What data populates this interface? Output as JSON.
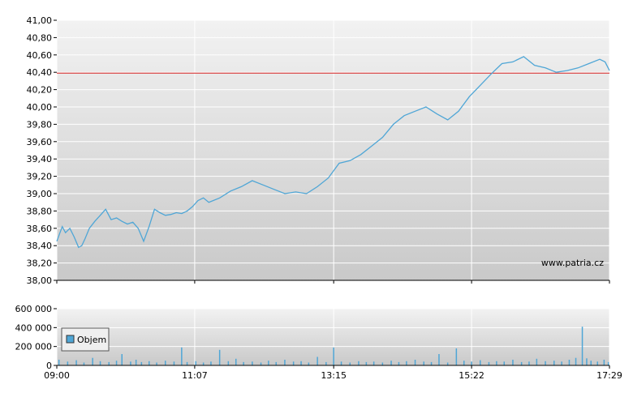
{
  "chart_data": [
    {
      "type": "line",
      "title": "",
      "xlabel": "",
      "ylabel": "",
      "ylim": [
        38.0,
        41.0
      ],
      "y_ticks": [
        "38,00",
        "38,20",
        "38,40",
        "38,60",
        "38,80",
        "39,00",
        "39,20",
        "39,40",
        "39,60",
        "39,80",
        "40,00",
        "40,20",
        "40,40",
        "40,60",
        "40,80",
        "41,00"
      ],
      "y_tick_values": [
        38.0,
        38.2,
        38.4,
        38.6,
        38.8,
        39.0,
        39.2,
        39.4,
        39.6,
        39.8,
        40.0,
        40.2,
        40.4,
        40.6,
        40.8,
        41.0
      ],
      "x_ticks": [
        "09:00",
        "11:07",
        "13:15",
        "15:22",
        "17:29"
      ],
      "x_tick_minutes": [
        540,
        667,
        795,
        922,
        1049
      ],
      "x_range_minutes": [
        540,
        1049
      ],
      "reference_line": {
        "value": 40.39,
        "color": "#d42020"
      },
      "grid": true,
      "line_color": "#4fa6d6",
      "credit": "www.patria.cz",
      "series": [
        {
          "x_minutes": [
            540,
            545,
            548,
            552,
            556,
            560,
            563,
            566,
            570,
            575,
            580,
            585,
            590,
            595,
            600,
            605,
            610,
            615,
            620,
            625,
            630,
            635,
            640,
            645,
            650,
            655,
            660,
            665,
            670,
            675,
            680,
            690,
            700,
            710,
            720,
            730,
            740,
            750,
            760,
            770,
            780,
            790,
            800,
            810,
            820,
            830,
            840,
            850,
            860,
            870,
            880,
            890,
            900,
            910,
            920,
            930,
            940,
            950,
            960,
            970,
            980,
            990,
            1000,
            1010,
            1020,
            1030,
            1040,
            1045,
            1049
          ],
          "values": [
            38.45,
            38.62,
            38.55,
            38.6,
            38.5,
            38.38,
            38.4,
            38.48,
            38.6,
            38.68,
            38.75,
            38.82,
            38.7,
            38.72,
            38.68,
            38.65,
            38.67,
            38.6,
            38.45,
            38.62,
            38.82,
            38.78,
            38.75,
            38.76,
            38.78,
            38.77,
            38.8,
            38.85,
            38.92,
            38.95,
            38.9,
            38.95,
            39.03,
            39.08,
            39.15,
            39.1,
            39.05,
            39.0,
            39.02,
            39.0,
            39.08,
            39.18,
            39.35,
            39.38,
            39.45,
            39.55,
            39.65,
            39.8,
            39.9,
            39.95,
            40.0,
            39.92,
            39.85,
            39.95,
            40.12,
            40.25,
            40.38,
            40.5,
            40.52,
            40.58,
            40.48,
            40.45,
            40.4,
            40.42,
            40.45,
            40.5,
            40.55,
            40.52,
            40.42
          ]
        }
      ]
    },
    {
      "type": "bar",
      "title": "",
      "xlabel": "",
      "ylabel": "",
      "ylim": [
        0,
        600000
      ],
      "y_ticks": [
        "0",
        "200 000",
        "400 000",
        "600 000"
      ],
      "y_tick_values": [
        0,
        200000,
        400000,
        600000
      ],
      "x_ticks": [
        "09:00",
        "11:07",
        "13:15",
        "15:22",
        "17:29"
      ],
      "x_tick_minutes": [
        540,
        667,
        795,
        922,
        1049
      ],
      "x_range_minutes": [
        540,
        1049
      ],
      "grid": true,
      "legend": {
        "label": "Objem",
        "placement": "left"
      },
      "bar_color": "#4fa6d6",
      "series": [
        {
          "name": "Objem",
          "x_minutes": [
            542,
            550,
            558,
            565,
            573,
            580,
            588,
            595,
            600,
            608,
            613,
            618,
            625,
            632,
            640,
            648,
            655,
            660,
            668,
            675,
            682,
            690,
            698,
            705,
            712,
            720,
            728,
            735,
            742,
            750,
            758,
            765,
            772,
            780,
            788,
            795,
            802,
            810,
            818,
            825,
            832,
            840,
            848,
            855,
            862,
            870,
            878,
            885,
            892,
            900,
            908,
            915,
            922,
            930,
            938,
            945,
            952,
            960,
            968,
            975,
            982,
            990,
            998,
            1005,
            1012,
            1018,
            1024,
            1028,
            1032,
            1038,
            1044,
            1048
          ],
          "values": [
            60000,
            40000,
            55000,
            30000,
            80000,
            45000,
            35000,
            50000,
            120000,
            40000,
            60000,
            35000,
            45000,
            30000,
            50000,
            40000,
            190000,
            35000,
            45000,
            30000,
            40000,
            165000,
            45000,
            70000,
            35000,
            40000,
            30000,
            50000,
            35000,
            60000,
            40000,
            45000,
            30000,
            90000,
            35000,
            190000,
            40000,
            30000,
            45000,
            35000,
            40000,
            30000,
            50000,
            35000,
            45000,
            60000,
            40000,
            35000,
            120000,
            30000,
            180000,
            50000,
            40000,
            55000,
            35000,
            45000,
            40000,
            60000,
            35000,
            40000,
            70000,
            45000,
            50000,
            40000,
            60000,
            80000,
            410000,
            75000,
            50000,
            40000,
            60000,
            35000
          ]
        }
      ]
    }
  ]
}
